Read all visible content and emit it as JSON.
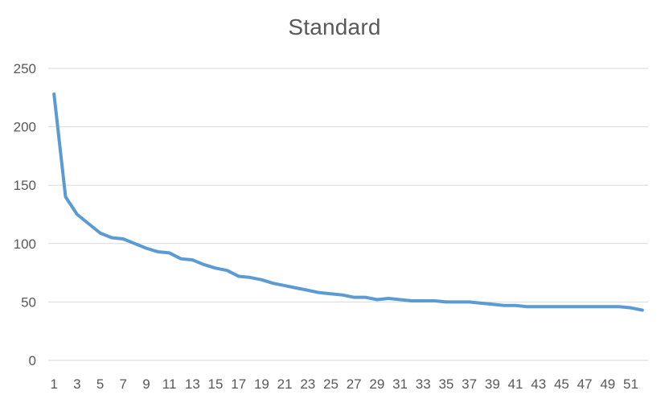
{
  "chart_data": {
    "type": "line",
    "title": "Standard",
    "xlabel": "",
    "ylabel": "",
    "x": [
      1,
      2,
      3,
      4,
      5,
      6,
      7,
      8,
      9,
      10,
      11,
      12,
      13,
      14,
      15,
      16,
      17,
      18,
      19,
      20,
      21,
      22,
      23,
      24,
      25,
      26,
      27,
      28,
      29,
      30,
      31,
      32,
      33,
      34,
      35,
      36,
      37,
      38,
      39,
      40,
      41,
      42,
      43,
      44,
      45,
      46,
      47,
      48,
      49,
      50,
      51,
      52
    ],
    "x_tick_labels": [
      "1",
      "3",
      "5",
      "7",
      "9",
      "11",
      "13",
      "15",
      "17",
      "19",
      "21",
      "23",
      "25",
      "27",
      "29",
      "31",
      "33",
      "35",
      "37",
      "39",
      "41",
      "43",
      "45",
      "47",
      "49",
      "51"
    ],
    "ylim": [
      0,
      250
    ],
    "y_ticks": [
      0,
      50,
      100,
      150,
      200,
      250
    ],
    "grid": true,
    "legend": "none",
    "series": [
      {
        "color": "#5b9bd5",
        "values": [
          228,
          140,
          125,
          117,
          109,
          105,
          104,
          100,
          96,
          93,
          92,
          87,
          86,
          82,
          79,
          77,
          72,
          71,
          69,
          66,
          64,
          62,
          60,
          58,
          57,
          56,
          54,
          54,
          52,
          53,
          52,
          51,
          51,
          51,
          50,
          50,
          50,
          49,
          48,
          47,
          47,
          46,
          46,
          46,
          46,
          46,
          46,
          46,
          46,
          46,
          45,
          43
        ]
      }
    ]
  }
}
